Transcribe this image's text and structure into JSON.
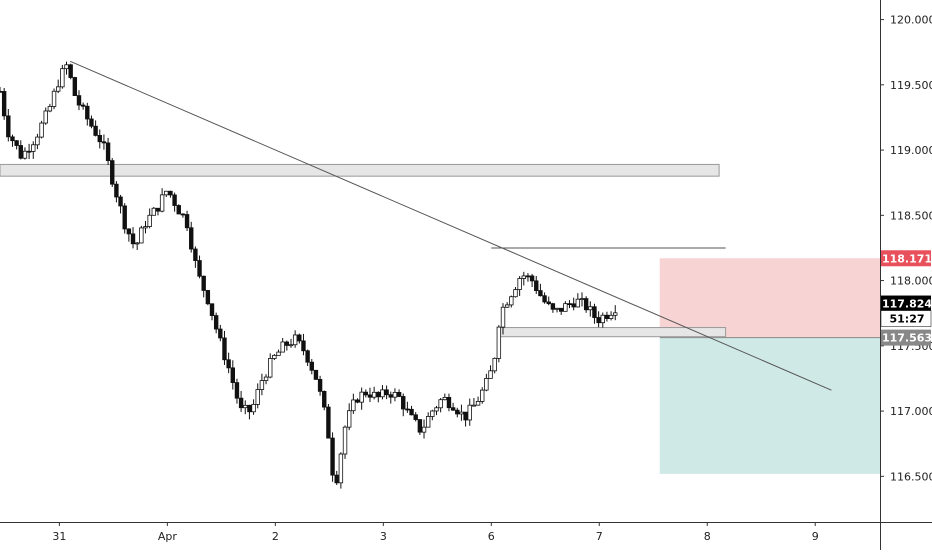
{
  "chart_data": {
    "type": "candlestick",
    "instrument_note": "price chart with long/short position tool",
    "y_axis": {
      "range": [
        116.15,
        120.15
      ],
      "ticks": [
        "120.000",
        "119.500",
        "119.000",
        "118.500",
        "118.000",
        "117.500",
        "117.000",
        "116.500"
      ]
    },
    "x_axis": {
      "ticks": [
        {
          "label": "31",
          "day": 0
        },
        {
          "label": "Apr",
          "day": 1
        },
        {
          "label": "2",
          "day": 2
        },
        {
          "label": "3",
          "day": 3
        },
        {
          "label": "6",
          "day": 4
        },
        {
          "label": "7",
          "day": 5
        },
        {
          "label": "8",
          "day": 6
        },
        {
          "label": "9",
          "day": 7
        }
      ],
      "range": [
        -0.55,
        7.6
      ]
    },
    "price_tags": [
      {
        "label": "118.171",
        "value": 118.171,
        "style": "stop"
      },
      {
        "label": "117.824",
        "value": 117.824,
        "style": "last"
      },
      {
        "label": "51:27",
        "value": 117.824,
        "style": "countdown"
      },
      {
        "label": "117.563",
        "value": 117.563,
        "style": "entry"
      }
    ],
    "position_tool": {
      "x_start_day": 5.56,
      "x_end_day": 7.6,
      "entry": 117.563,
      "stop": 118.171,
      "target": 116.519,
      "stop_color": "#f8d3d3",
      "target_color": "#cfe9e6"
    },
    "drawings": {
      "trendline": {
        "from": {
          "day": 0.1,
          "price": 119.68
        },
        "to": {
          "day": 7.15,
          "price": 117.16
        }
      },
      "resistance_zone": {
        "from_day": -0.55,
        "to_day": 6.11,
        "top": 118.89,
        "bottom": 118.8
      },
      "support_zone": {
        "from_day": 4.06,
        "to_day": 6.17,
        "top": 117.64,
        "bottom": 117.57
      },
      "high_line": {
        "day_from": 4.0,
        "day_to": 6.17,
        "price": 118.25
      }
    },
    "candles_keypoints": [
      {
        "day": -0.55,
        "price": 119.45
      },
      {
        "day": -0.48,
        "price": 119.15
      },
      {
        "day": -0.35,
        "price": 118.95
      },
      {
        "day": -0.22,
        "price": 119.1
      },
      {
        "day": -0.1,
        "price": 119.3
      },
      {
        "day": 0.0,
        "price": 119.55
      },
      {
        "day": 0.07,
        "price": 119.65
      },
      {
        "day": 0.15,
        "price": 119.4
      },
      {
        "day": 0.25,
        "price": 119.25
      },
      {
        "day": 0.4,
        "price": 119.05
      },
      {
        "day": 0.5,
        "price": 118.75
      },
      {
        "day": 0.6,
        "price": 118.45
      },
      {
        "day": 0.7,
        "price": 118.25
      },
      {
        "day": 0.8,
        "price": 118.45
      },
      {
        "day": 0.9,
        "price": 118.55
      },
      {
        "day": 1.0,
        "price": 118.7
      },
      {
        "day": 1.1,
        "price": 118.55
      },
      {
        "day": 1.18,
        "price": 118.45
      },
      {
        "day": 1.28,
        "price": 118.05
      },
      {
        "day": 1.38,
        "price": 117.85
      },
      {
        "day": 1.48,
        "price": 117.55
      },
      {
        "day": 1.58,
        "price": 117.3
      },
      {
        "day": 1.68,
        "price": 117.0
      },
      {
        "day": 1.78,
        "price": 117.0
      },
      {
        "day": 1.88,
        "price": 117.25
      },
      {
        "day": 1.98,
        "price": 117.4
      },
      {
        "day": 2.08,
        "price": 117.5
      },
      {
        "day": 2.18,
        "price": 117.55
      },
      {
        "day": 2.28,
        "price": 117.45
      },
      {
        "day": 2.38,
        "price": 117.25
      },
      {
        "day": 2.48,
        "price": 116.9
      },
      {
        "day": 2.55,
        "price": 116.4
      },
      {
        "day": 2.65,
        "price": 116.9
      },
      {
        "day": 2.75,
        "price": 117.1
      },
      {
        "day": 2.85,
        "price": 117.15
      },
      {
        "day": 2.95,
        "price": 117.1
      },
      {
        "day": 3.05,
        "price": 117.15
      },
      {
        "day": 3.15,
        "price": 117.1
      },
      {
        "day": 3.25,
        "price": 116.95
      },
      {
        "day": 3.35,
        "price": 116.85
      },
      {
        "day": 3.45,
        "price": 117.0
      },
      {
        "day": 3.55,
        "price": 117.1
      },
      {
        "day": 3.65,
        "price": 117.05
      },
      {
        "day": 3.75,
        "price": 116.95
      },
      {
        "day": 3.85,
        "price": 117.05
      },
      {
        "day": 3.95,
        "price": 117.2
      },
      {
        "day": 4.02,
        "price": 117.35
      },
      {
        "day": 4.08,
        "price": 117.75
      },
      {
        "day": 4.18,
        "price": 117.9
      },
      {
        "day": 4.28,
        "price": 118.05
      },
      {
        "day": 4.38,
        "price": 118.0
      },
      {
        "day": 4.48,
        "price": 117.85
      },
      {
        "day": 4.58,
        "price": 117.75
      },
      {
        "day": 4.68,
        "price": 117.8
      },
      {
        "day": 4.78,
        "price": 117.85
      },
      {
        "day": 4.88,
        "price": 117.8
      },
      {
        "day": 4.98,
        "price": 117.7
      },
      {
        "day": 5.08,
        "price": 117.75
      },
      {
        "day": 5.18,
        "price": 117.82
      }
    ]
  }
}
